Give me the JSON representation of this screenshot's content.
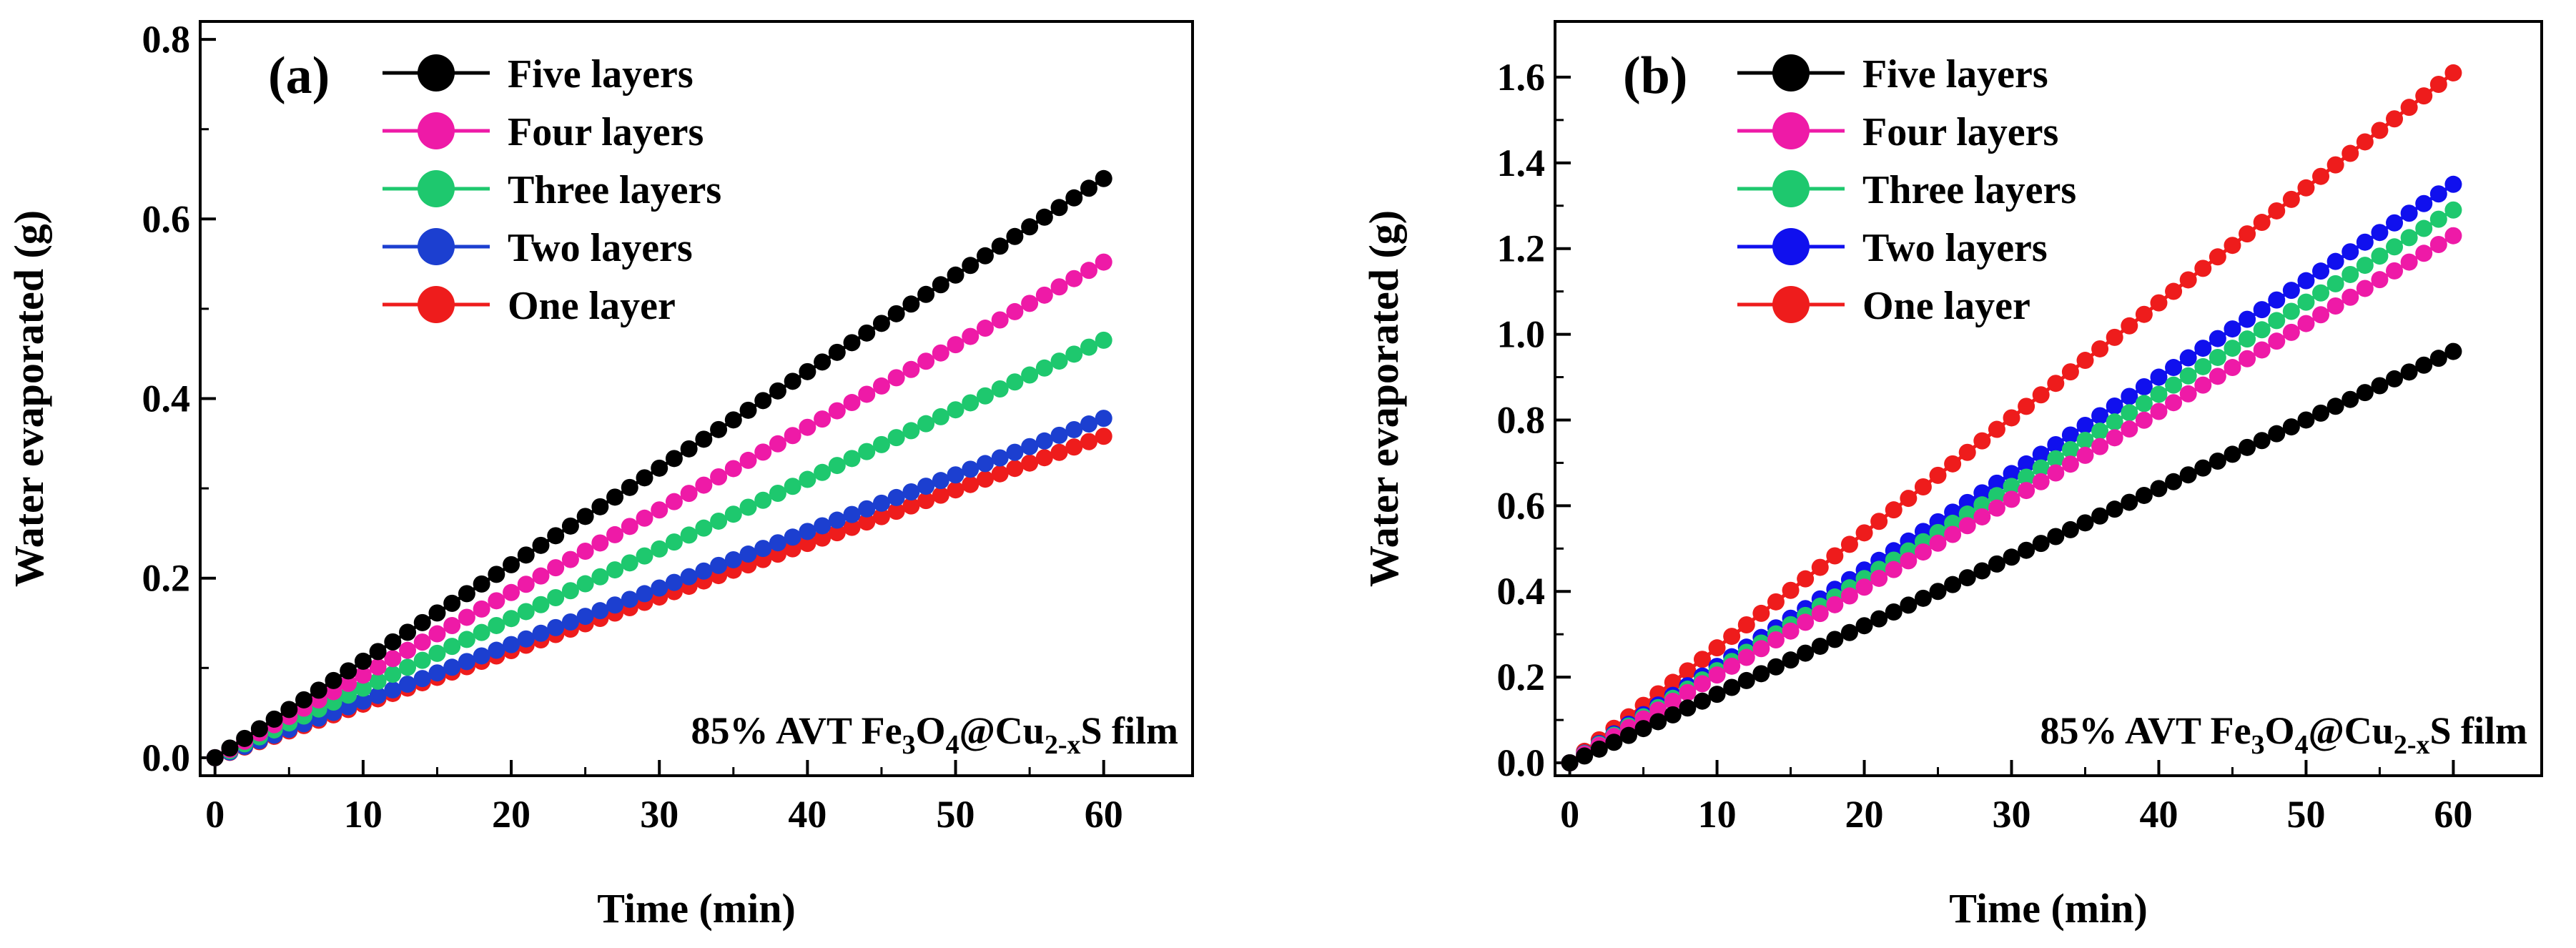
{
  "chart_data": [
    {
      "type": "line",
      "panel_label": "(a)",
      "xlabel": "Time (min)",
      "ylabel": "Water evaporated (g)",
      "xlim": [
        -1,
        66
      ],
      "ylim": [
        -0.02,
        0.82
      ],
      "x_ticks": [
        0,
        10,
        20,
        30,
        40,
        50,
        60
      ],
      "y_ticks": [
        0.0,
        0.2,
        0.4,
        0.6,
        0.8
      ],
      "y_tick_labels": [
        "0.0",
        "0.2",
        "0.4",
        "0.6",
        "0.8"
      ],
      "annotation": {
        "prefix": "85% AVT Fe",
        "sub1": "3",
        "mid1": "O",
        "sub2": "4",
        "mid2": "@Cu",
        "sub3": "2-x",
        "suffix": "S film"
      },
      "legend_position": "top-left",
      "series": [
        {
          "name": "Five layers",
          "color": "#000000",
          "x": [
            0,
            60
          ],
          "y": [
            0,
            0.645
          ]
        },
        {
          "name": "Four layers",
          "color": "#ee1aa7",
          "x": [
            0,
            60
          ],
          "y": [
            0,
            0.552
          ]
        },
        {
          "name": "Three layers",
          "color": "#1ec86e",
          "x": [
            0,
            60
          ],
          "y": [
            0,
            0.465
          ]
        },
        {
          "name": "Two layers",
          "color": "#1c3fd0",
          "x": [
            0,
            60
          ],
          "y": [
            0,
            0.378
          ]
        },
        {
          "name": "One layer",
          "color": "#ee1c1c",
          "x": [
            0,
            60
          ],
          "y": [
            0,
            0.358
          ]
        }
      ]
    },
    {
      "type": "line",
      "panel_label": "(b)",
      "xlabel": "Time (min)",
      "ylabel": "Water evaporated (g)",
      "xlim": [
        -1,
        66
      ],
      "ylim": [
        -0.03,
        1.73
      ],
      "x_ticks": [
        0,
        10,
        20,
        30,
        40,
        50,
        60
      ],
      "y_ticks": [
        0.0,
        0.2,
        0.4,
        0.6,
        0.8,
        1.0,
        1.2,
        1.4,
        1.6
      ],
      "y_tick_labels": [
        "0.0",
        "0.2",
        "0.4",
        "0.6",
        "0.8",
        "1.0",
        "1.2",
        "1.4",
        "1.6"
      ],
      "annotation": {
        "prefix": "85% AVT Fe",
        "sub1": "3",
        "mid1": "O",
        "sub2": "4",
        "mid2": "@Cu",
        "sub3": "2-x",
        "suffix": "S film"
      },
      "legend_position": "top-left",
      "series": [
        {
          "name": "Five layers",
          "color": "#000000",
          "x": [
            0,
            60
          ],
          "y": [
            0,
            0.96
          ]
        },
        {
          "name": "Four layers",
          "color": "#ee1aa7",
          "x": [
            0,
            60
          ],
          "y": [
            0,
            1.23
          ]
        },
        {
          "name": "Three layers",
          "color": "#1ec86e",
          "x": [
            0,
            60
          ],
          "y": [
            0,
            1.29
          ]
        },
        {
          "name": "Two layers",
          "color": "#1010ee",
          "x": [
            0,
            60
          ],
          "y": [
            0,
            1.35
          ]
        },
        {
          "name": "One layer",
          "color": "#ee1c1c",
          "x": [
            0,
            60
          ],
          "y": [
            0,
            1.61
          ]
        }
      ]
    }
  ]
}
